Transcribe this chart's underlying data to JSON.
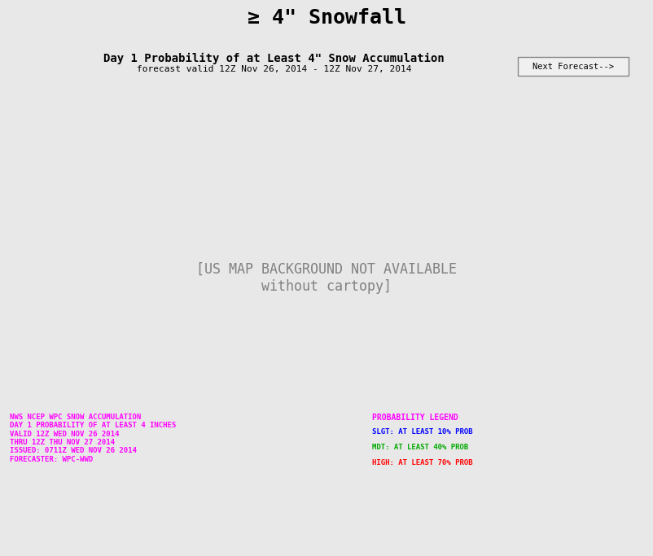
{
  "title_bar": "≥ 4\" Snowfall",
  "subtitle": "Day 1 Probability of at Least 4\" Snow Accumulation",
  "forecast_valid": "forecast valid 12Z Nov 26, 2014 - 12Z Nov 27, 2014",
  "next_forecast_btn": "Next Forecast-->",
  "bg_color": "#e8e8e8",
  "map_bg": "#ffffff",
  "title_bar_color": "#d8d8d8",
  "border_color": "#888888",
  "legend_title": "PROBABILITY LEGEND",
  "legend_title_color": "#ff00ff",
  "legend_lines": [
    {
      "label": "SLGT: AT LEAST 10% PROB",
      "color": "#0000ff"
    },
    {
      "label": "MDT: AT LEAST 40% PROB",
      "color": "#00aa00"
    },
    {
      "label": "HIGH: AT LEAST 70% PROB",
      "color": "#ff0000"
    }
  ],
  "bottom_text_lines": [
    "NWS NCEP WPC SNOW ACCUMULATION",
    "DAY 1 PROBABILITY OF AT LEAST 4 INCHES",
    "VALID 12Z WED NOV 26 2014",
    "THRU 12Z THU NOV 27 2014",
    "ISSUED: 0711Z WED NOV 26 2014",
    "FORECASTER: WPC-WWD"
  ],
  "bottom_text_color": "#ff00ff",
  "noaa_logo_color": "#00aaff"
}
